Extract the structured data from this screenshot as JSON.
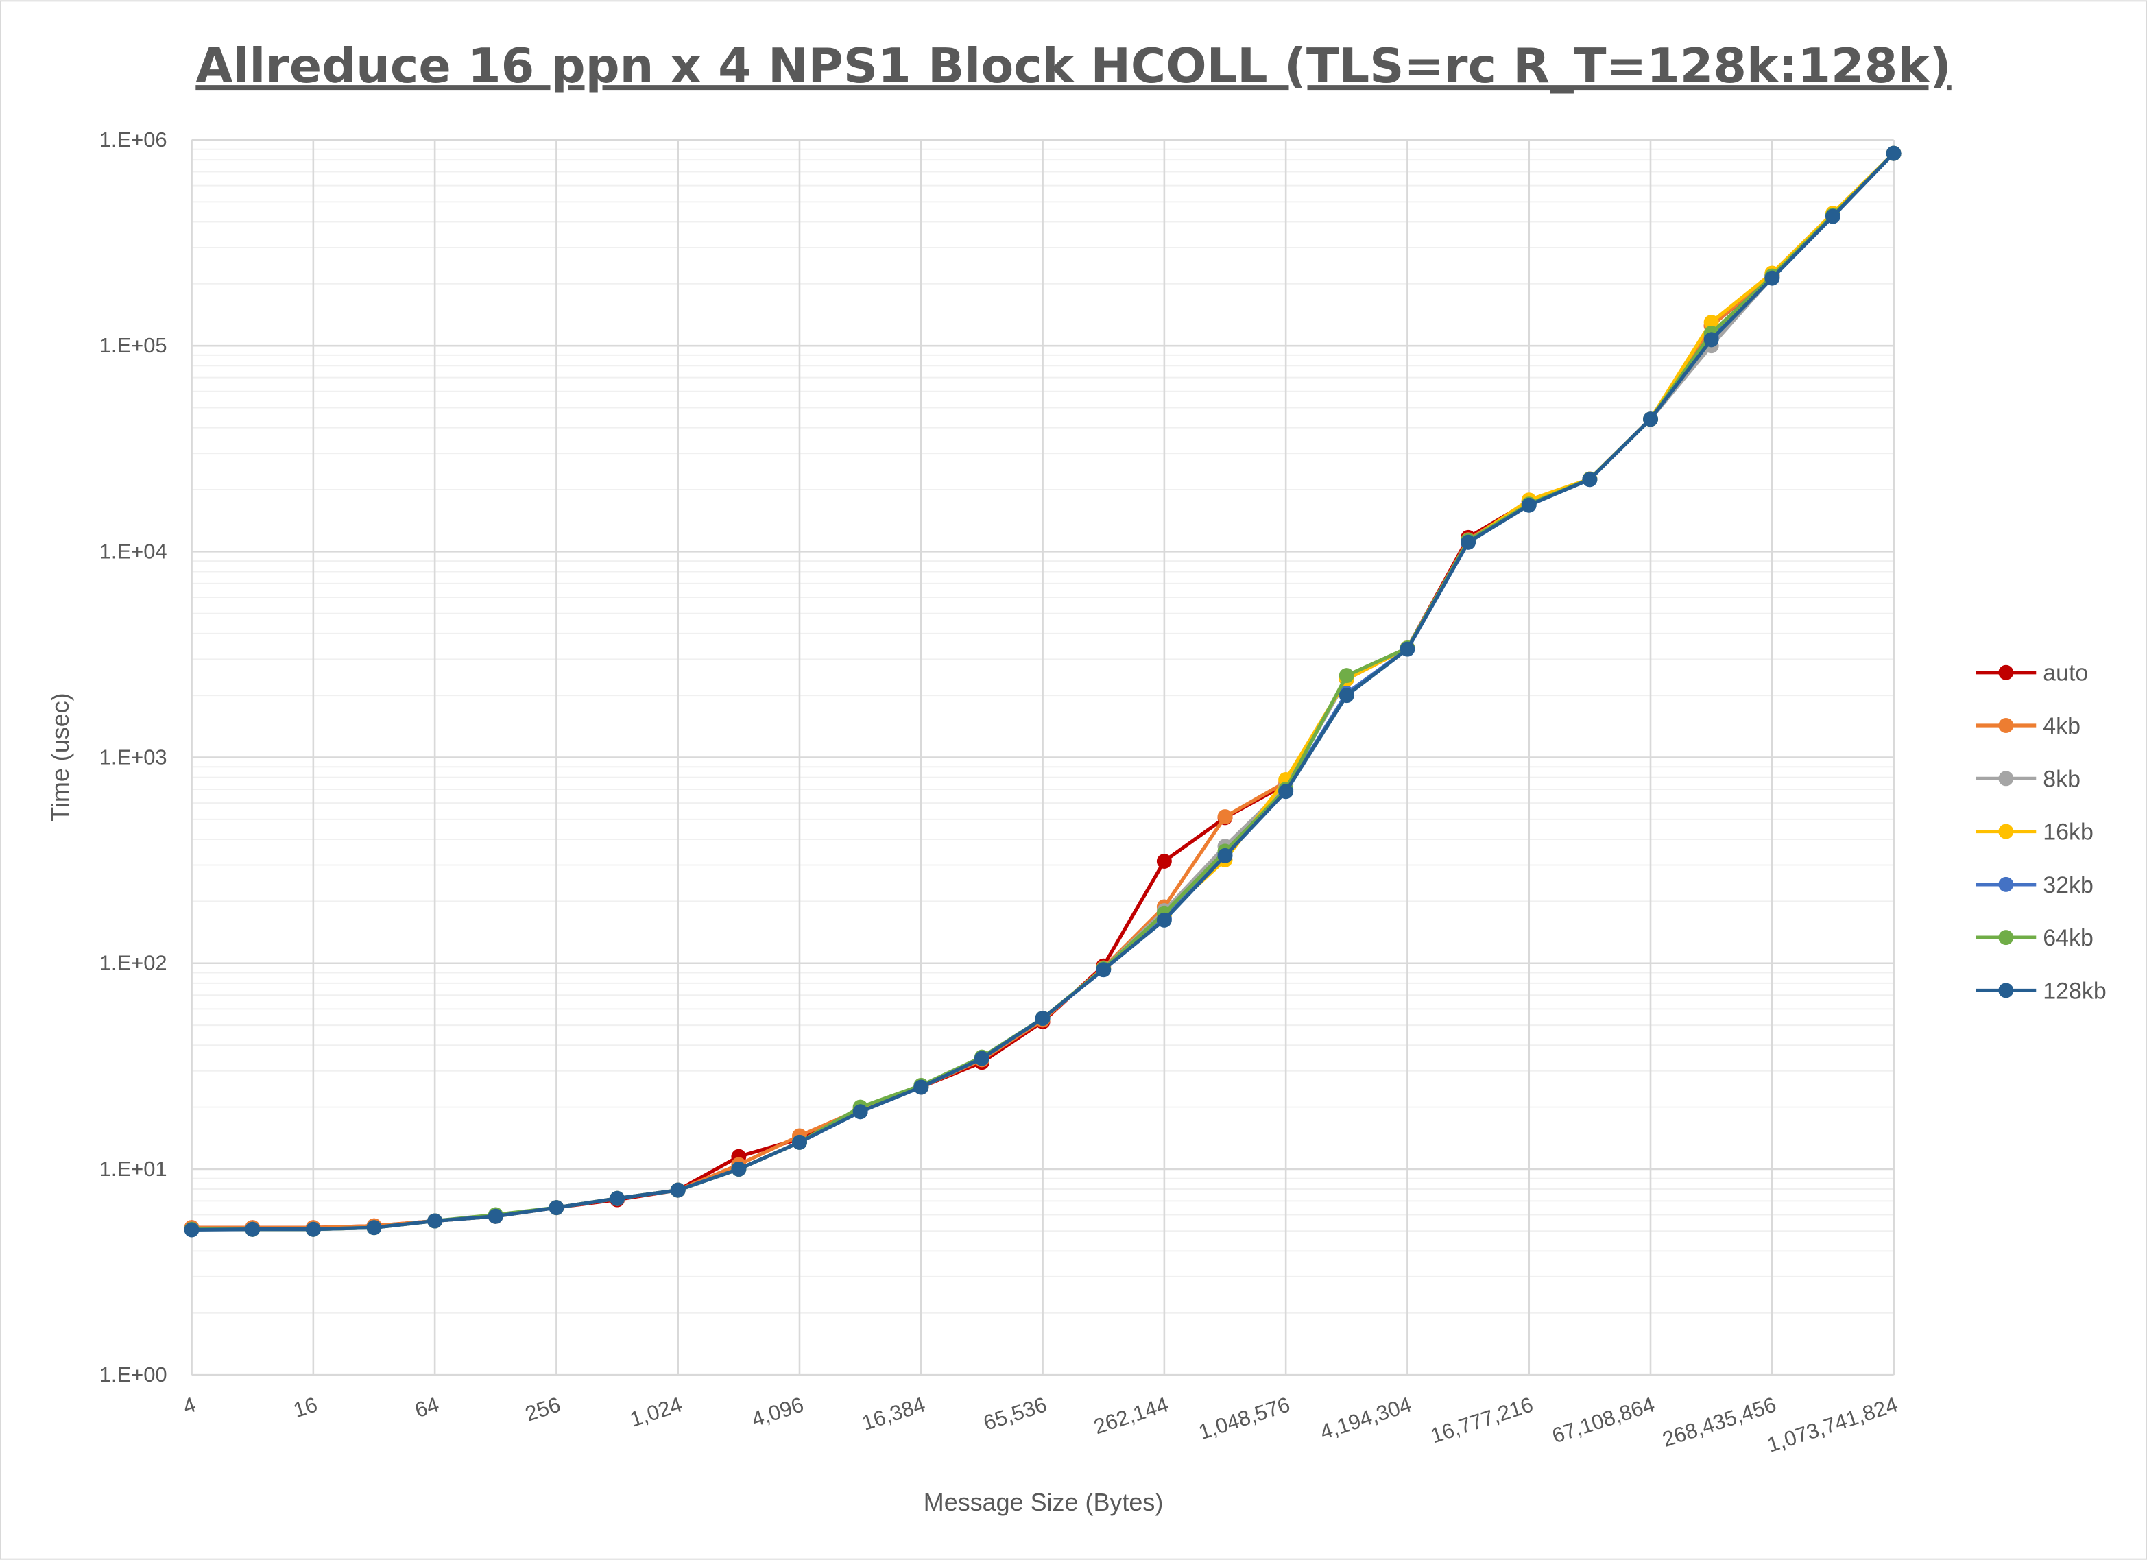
{
  "chart_data": {
    "type": "line",
    "title": "Allreduce 16 ppn x 4 NPS1 Block HCOLL (TLS=rc R_T=128k:128k)",
    "xlabel": "Message Size (Bytes)",
    "ylabel": "Time (usec)",
    "x_scale": "log2",
    "y_scale": "log10",
    "ylim": [
      1,
      1000000
    ],
    "grid": true,
    "legend_position": "right",
    "x": [
      4,
      8,
      16,
      32,
      64,
      128,
      256,
      512,
      1024,
      2048,
      4096,
      8192,
      16384,
      32768,
      65536,
      131072,
      262144,
      524288,
      1048576,
      2097152,
      4194304,
      8388608,
      16777216,
      33554432,
      67108864,
      134217728,
      268435456,
      536870912,
      1073741824
    ],
    "x_tick_labels": [
      "4",
      "16",
      "64",
      "256",
      "1,024",
      "4,096",
      "16,384",
      "65,536",
      "262,144",
      "1,048,576",
      "4,194,304",
      "16,777,216",
      "67,108,864",
      "268,435,456",
      "1,073,741,824"
    ],
    "y_tick_labels": [
      "1.E+00",
      "1.E+01",
      "1.E+02",
      "1.E+03",
      "1.E+04",
      "1.E+05",
      "1.E+06"
    ],
    "series": [
      {
        "name": "auto",
        "color": "#C00000",
        "values": [
          5.2,
          5.2,
          5.2,
          5.3,
          5.6,
          5.9,
          6.5,
          7.1,
          7.9,
          11.5,
          14,
          19.5,
          25,
          33,
          52,
          97,
          313,
          510,
          740,
          2400,
          3400,
          11700,
          17500,
          22500,
          44000,
          125000,
          220000,
          430000,
          860000
        ]
      },
      {
        "name": "4kb",
        "color": "#ED7D31",
        "values": [
          5.2,
          5.2,
          5.2,
          5.3,
          5.6,
          5.9,
          6.5,
          7.2,
          7.9,
          10.5,
          14.5,
          19.5,
          25,
          34,
          53,
          95,
          188,
          515,
          760,
          2400,
          3400,
          11400,
          17500,
          22500,
          44000,
          125000,
          222000,
          435000,
          860000
        ]
      },
      {
        "name": "8kb",
        "color": "#A5A5A5",
        "values": [
          5.1,
          5.1,
          5.1,
          5.2,
          5.6,
          5.9,
          6.5,
          7.2,
          7.9,
          10,
          13.5,
          19.5,
          25,
          34.5,
          54,
          94,
          180,
          370,
          720,
          2400,
          3400,
          11200,
          17000,
          22400,
          44000,
          100000,
          215000,
          430000,
          860000
        ]
      },
      {
        "name": "16kb",
        "color": "#FFC000",
        "values": [
          5.1,
          5.1,
          5.1,
          5.2,
          5.6,
          5.9,
          6.5,
          7.2,
          7.9,
          10,
          13.5,
          19.5,
          25,
          34.5,
          54,
          94,
          170,
          318,
          780,
          2400,
          3400,
          11200,
          17800,
          22500,
          44000,
          130000,
          225000,
          440000,
          860000
        ]
      },
      {
        "name": "32kb",
        "color": "#4472C4",
        "values": [
          5.1,
          5.1,
          5.1,
          5.2,
          5.6,
          5.9,
          6.5,
          7.2,
          7.9,
          10,
          13.5,
          19,
          25,
          34.5,
          54,
          93,
          165,
          345,
          690,
          2050,
          3360,
          11100,
          16900,
          22400,
          44000,
          110000,
          214000,
          428000,
          860000
        ]
      },
      {
        "name": "64kb",
        "color": "#70AD47",
        "values": [
          5.1,
          5.1,
          5.1,
          5.2,
          5.6,
          6,
          6.5,
          7.2,
          7.9,
          10,
          13.5,
          20,
          25.5,
          35,
          54,
          94,
          175,
          350,
          700,
          2500,
          3400,
          11300,
          17000,
          22500,
          44000,
          115000,
          218000,
          430000,
          860000
        ]
      },
      {
        "name": "128kb",
        "color": "#255E91",
        "values": [
          5.07,
          5.1,
          5.1,
          5.2,
          5.6,
          5.9,
          6.5,
          7.2,
          7.9,
          10,
          13.5,
          19,
          25,
          34.5,
          54,
          93,
          162,
          333,
          683,
          2000,
          3360,
          11100,
          16800,
          22400,
          44000,
          107000,
          213000,
          425000,
          860000
        ]
      }
    ]
  }
}
